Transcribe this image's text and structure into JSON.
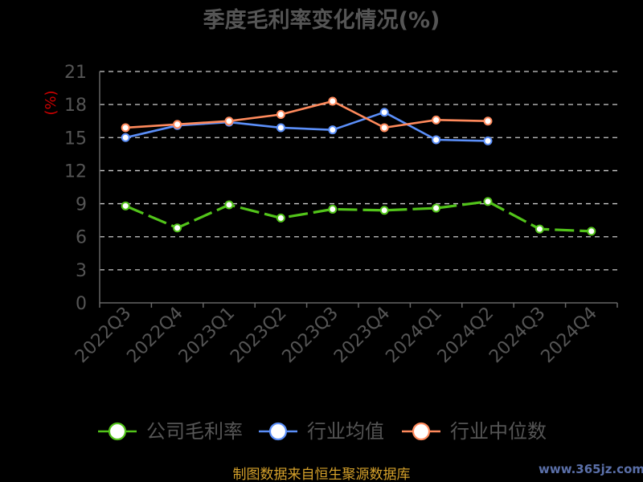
{
  "chart_data": {
    "type": "line",
    "title": "季度毛利率变化情况(%)",
    "ylabel": "(%)",
    "ylim": [
      0,
      21
    ],
    "yticks": [
      0,
      3,
      6,
      9,
      12,
      15,
      18,
      21
    ],
    "categories": [
      "2022Q3",
      "2022Q4",
      "2023Q1",
      "2023Q2",
      "2023Q3",
      "2023Q4",
      "2024Q1",
      "2024Q2",
      "2024Q3",
      "2024Q4"
    ],
    "grid": true,
    "legend_position": "bottom",
    "series": [
      {
        "name": "公司毛利率",
        "color": "#52c41a",
        "values": [
          8.8,
          6.8,
          8.9,
          7.7,
          8.5,
          8.4,
          8.6,
          9.2,
          6.7,
          6.5
        ]
      },
      {
        "name": "行业均值",
        "color": "#5b8ff9",
        "values": [
          15.0,
          16.1,
          16.4,
          15.9,
          15.7,
          17.3,
          14.8,
          14.7,
          null,
          null
        ]
      },
      {
        "name": "行业中位数",
        "color": "#ff8a5c",
        "values": [
          15.9,
          16.2,
          16.5,
          17.1,
          18.3,
          15.9,
          16.6,
          16.5,
          null,
          null
        ]
      }
    ]
  },
  "footer": {
    "source": "制图数据来自恒生聚源数据库",
    "watermark": "www.365jz.com"
  }
}
